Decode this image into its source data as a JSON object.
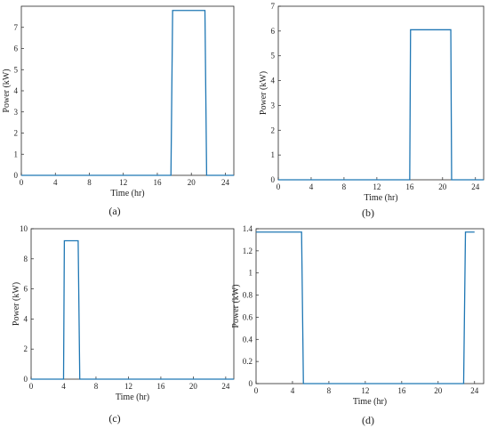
{
  "chart_data": [
    {
      "type": "line",
      "panel": "(a)",
      "xlabel": "Time (hr)",
      "ylabel": "Power (kW)",
      "xlim": [
        0,
        25
      ],
      "ylim": [
        0,
        8
      ],
      "xticks": [
        0,
        4,
        8,
        12,
        16,
        20,
        24
      ],
      "yticks": [
        0,
        1,
        2,
        3,
        4,
        5,
        6,
        7
      ],
      "series": [
        {
          "color": "#1f77b4",
          "x": [
            0,
            17.6,
            17.8,
            21.6,
            21.8,
            25
          ],
          "y": [
            0,
            0,
            7.8,
            7.8,
            0,
            0
          ]
        }
      ]
    },
    {
      "type": "line",
      "panel": "(b)",
      "xlabel": "Time (hr)",
      "ylabel": "Power (kW)",
      "xlim": [
        0,
        25
      ],
      "ylim": [
        0,
        7
      ],
      "xticks": [
        0,
        4,
        8,
        12,
        16,
        20,
        24
      ],
      "yticks": [
        0,
        1,
        2,
        3,
        4,
        5,
        6,
        7
      ],
      "series": [
        {
          "color": "#1f77b4",
          "x": [
            0,
            16.0,
            16.1,
            21.0,
            21.1,
            25
          ],
          "y": [
            0,
            0,
            6.05,
            6.05,
            0,
            0
          ]
        }
      ]
    },
    {
      "type": "line",
      "panel": "(c)",
      "xlabel": "Time (hr)",
      "ylabel": "Power (kW)",
      "xlim": [
        0,
        25
      ],
      "ylim": [
        0,
        10
      ],
      "xticks": [
        0,
        4,
        8,
        12,
        16,
        20,
        24
      ],
      "yticks": [
        0,
        2,
        4,
        6,
        8,
        10
      ],
      "series": [
        {
          "color": "#1f77b4",
          "x": [
            0,
            4.0,
            4.1,
            5.8,
            6.0,
            25
          ],
          "y": [
            0,
            0,
            9.2,
            9.2,
            0,
            0
          ]
        }
      ]
    },
    {
      "type": "line",
      "panel": "(d)",
      "xlabel": "Time (hr)",
      "ylabel": "Power (kW)",
      "xlim": [
        0,
        25
      ],
      "ylim": [
        0,
        1.4
      ],
      "xticks": [
        0,
        4,
        8,
        12,
        16,
        20,
        24
      ],
      "yticks": [
        "0",
        "0.2",
        "0.4",
        "0.6",
        "0.8",
        "1",
        "1.2",
        "1.4"
      ],
      "series": [
        {
          "color": "#1f77b4",
          "x": [
            0,
            5.0,
            5.2,
            22.8,
            23.0,
            24
          ],
          "y": [
            1.37,
            1.37,
            0,
            0,
            1.37,
            1.37
          ]
        }
      ]
    }
  ]
}
